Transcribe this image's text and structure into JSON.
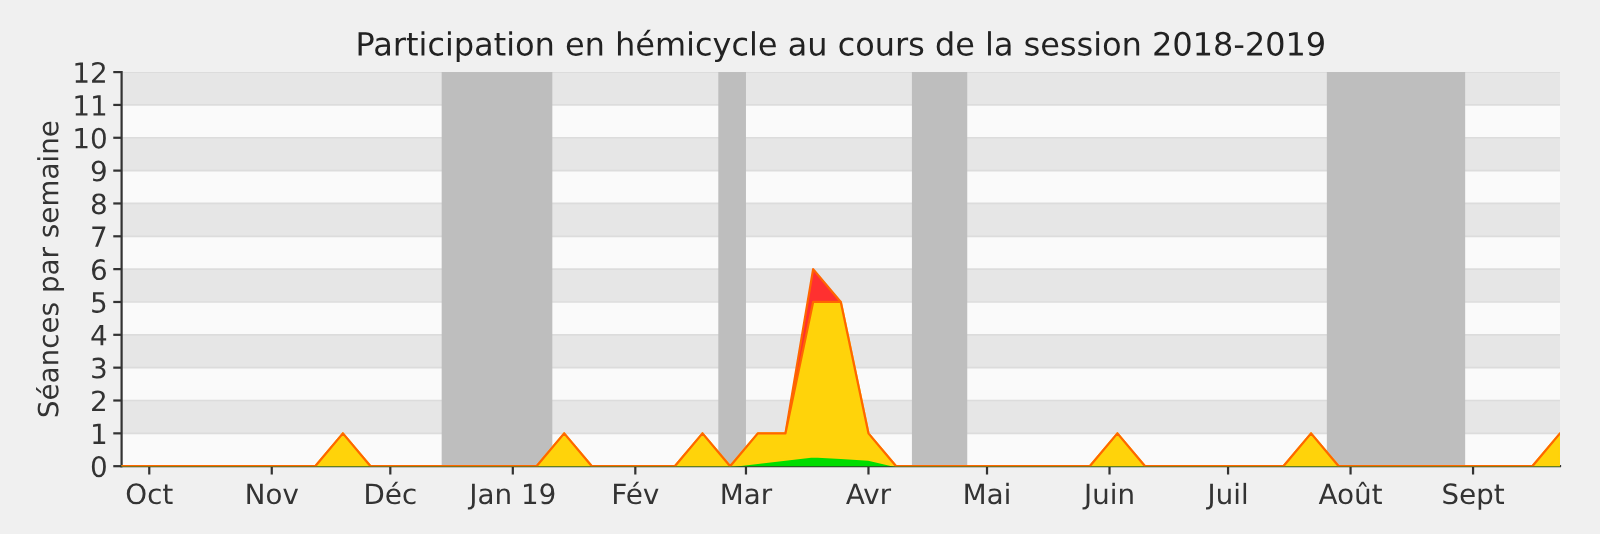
{
  "chart_data": {
    "type": "area",
    "stacked": true,
    "title": "Participation en hémicycle au cours de la session 2018-2019",
    "ylabel": "Séances par semaine",
    "x": [
      "2018-09-24",
      "2018-10-01",
      "2018-10-08",
      "2018-10-15",
      "2018-10-22",
      "2018-10-29",
      "2018-11-05",
      "2018-11-12",
      "2018-11-19",
      "2018-11-26",
      "2018-12-03",
      "2018-12-10",
      "2018-12-17",
      "2018-12-24",
      "2018-12-31",
      "2019-01-07",
      "2019-01-14",
      "2019-01-21",
      "2019-01-28",
      "2019-02-04",
      "2019-02-11",
      "2019-02-18",
      "2019-02-25",
      "2019-03-04",
      "2019-03-11",
      "2019-03-18",
      "2019-03-25",
      "2019-04-01",
      "2019-04-08",
      "2019-04-15",
      "2019-04-22",
      "2019-04-29",
      "2019-05-06",
      "2019-05-13",
      "2019-05-20",
      "2019-05-27",
      "2019-06-03",
      "2019-06-10",
      "2019-06-17",
      "2019-06-24",
      "2019-07-01",
      "2019-07-08",
      "2019-07-15",
      "2019-07-22",
      "2019-07-29",
      "2019-08-05",
      "2019-08-12",
      "2019-08-19",
      "2019-08-26",
      "2019-09-02",
      "2019-09-09",
      "2019-09-16",
      "2019-09-23"
    ],
    "series": [
      {
        "color": "#00dd00",
        "values": [
          0,
          0,
          0,
          0,
          0,
          0,
          0,
          0,
          0,
          0,
          0,
          0,
          0,
          0,
          0,
          0,
          0,
          0,
          0,
          0,
          0,
          0,
          0,
          0.1,
          0.2,
          0.3,
          0.25,
          0.2,
          0,
          0,
          0,
          0,
          0,
          0,
          0,
          0,
          0,
          0,
          0,
          0,
          0,
          0,
          0,
          0,
          0,
          0,
          0,
          0,
          0,
          0,
          0,
          0,
          0
        ]
      },
      {
        "color": "#ffd30a",
        "values": [
          0,
          0,
          0,
          0,
          0,
          0,
          0,
          0,
          1,
          0,
          0,
          0,
          0,
          0,
          0,
          0,
          1,
          0,
          0,
          0,
          0,
          1,
          0,
          0.9,
          0.8,
          4.7,
          4.75,
          0.8,
          0,
          0,
          0,
          0,
          0,
          0,
          0,
          0,
          1,
          0,
          0,
          0,
          0,
          0,
          0,
          1,
          0,
          0,
          0,
          0,
          0,
          0,
          0,
          0,
          1
        ]
      },
      {
        "color": "#ff3030",
        "values": [
          0,
          0,
          0,
          0,
          0,
          0,
          0,
          0,
          0,
          0,
          0,
          0,
          0,
          0,
          0,
          0,
          0,
          0,
          0,
          0,
          0,
          0,
          0,
          0,
          0,
          1,
          0,
          0,
          0,
          0,
          0,
          0,
          0,
          0,
          0,
          0,
          0,
          0,
          0,
          0,
          0,
          0,
          0,
          0,
          0,
          0,
          0,
          0,
          0,
          0,
          0,
          0,
          0
        ]
      }
    ],
    "xlim": [
      "2018-09-24",
      "2019-09-23"
    ],
    "ylim": [
      0,
      12
    ],
    "yticks": [
      0,
      1,
      2,
      3,
      4,
      5,
      6,
      7,
      8,
      9,
      10,
      11,
      12
    ],
    "xticks": [
      {
        "value": "2018-10-01",
        "label": "Oct"
      },
      {
        "value": "2018-11-01",
        "label": "Nov"
      },
      {
        "value": "2018-12-01",
        "label": "Déc"
      },
      {
        "value": "2019-01-01",
        "label": "Jan 19"
      },
      {
        "value": "2019-02-01",
        "label": "Fév"
      },
      {
        "value": "2019-03-01",
        "label": "Mar"
      },
      {
        "value": "2019-04-01",
        "label": "Avr"
      },
      {
        "value": "2019-05-01",
        "label": "Mai"
      },
      {
        "value": "2019-06-01",
        "label": "Juin"
      },
      {
        "value": "2019-07-01",
        "label": "Juil"
      },
      {
        "value": "2019-08-01",
        "label": "Août"
      },
      {
        "value": "2019-09-01",
        "label": "Sept"
      }
    ],
    "bands": [
      {
        "axis": "x",
        "from": "2018-12-14",
        "to": "2019-01-11",
        "color": "#bebebe"
      },
      {
        "axis": "x",
        "from": "2019-02-22",
        "to": "2019-03-01",
        "color": "#bebebe"
      },
      {
        "axis": "x",
        "from": "2019-04-12",
        "to": "2019-04-26",
        "color": "#bebebe"
      },
      {
        "axis": "x",
        "from": "2019-07-26",
        "to": "2019-08-30",
        "color": "#bebebe"
      }
    ],
    "grid": "y"
  }
}
